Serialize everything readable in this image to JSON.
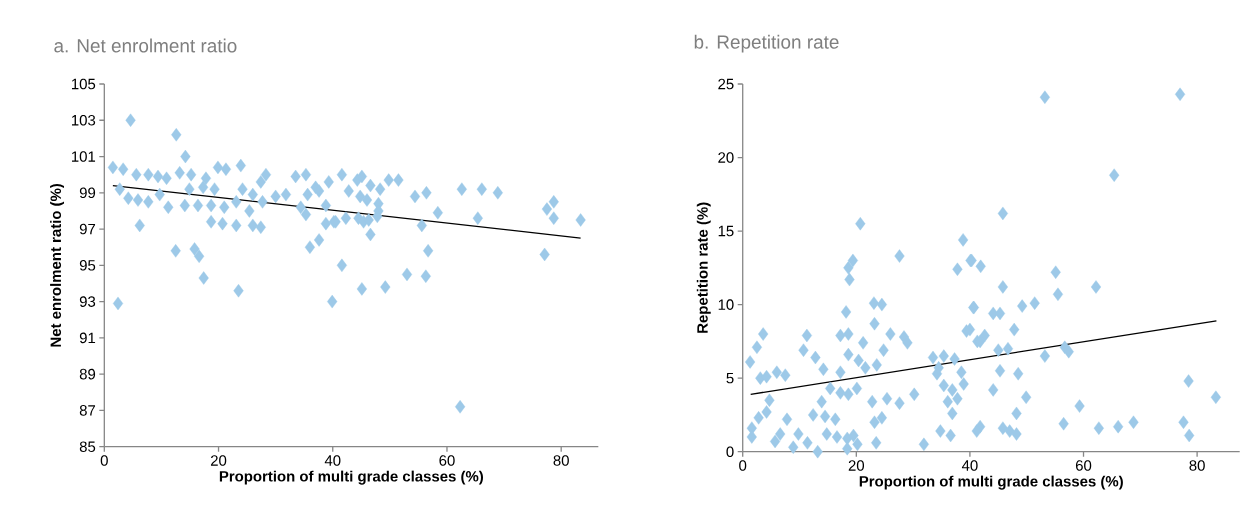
{
  "chart_data": [
    {
      "type": "scatter",
      "title": "a. Net enrolment ratio",
      "xlabel": "Proportion of multi grade classes (%)",
      "ylabel": "Net enrolment ratio (%)",
      "xlim": [
        0,
        86.5
      ],
      "ylim": [
        85,
        105
      ],
      "xticks": [
        0,
        20,
        40,
        60,
        80
      ],
      "yticks": [
        85,
        87,
        89,
        91,
        93,
        95,
        97,
        99,
        101,
        103,
        105
      ],
      "grid": false,
      "series": [
        {
          "color": "#9dc9e8",
          "marker": "diamond",
          "x": [
            4.6,
            12.6,
            14.2,
            2.4,
            6.2,
            12.5,
            15.8,
            16.6,
            17.4,
            23.5,
            39.9,
            36.0,
            37.6,
            1.5,
            3.3,
            5.6,
            7.7,
            9.4,
            10.9,
            13.2,
            15.2,
            17.8,
            19.9,
            21.3,
            23.9,
            28.3,
            27.4,
            33.5,
            35.3,
            39.3,
            2.7,
            4.2,
            5.9,
            7.7,
            9.7,
            11.2,
            14.1,
            14.9,
            16.4,
            17.3,
            18.7,
            19.3,
            18.7,
            20.7,
            21.0,
            23.1,
            23.1,
            24.2,
            25.4,
            26.0,
            27.4,
            26.0,
            27.7,
            30.0,
            31.8,
            34.4,
            35.3,
            35.6,
            37.0,
            37.6,
            38.8,
            38.8,
            40.2,
            41.6,
            44.3,
            45.1,
            46.6,
            48.3,
            49.8,
            51.5,
            42.8,
            44.8,
            46.0,
            48.0,
            48.0,
            40.5,
            42.3,
            44.5,
            45.4,
            46.3,
            47.8,
            46.6,
            54.4,
            56.4,
            58.4,
            55.6,
            56.7,
            56.3,
            53.0,
            41.6,
            45.1,
            49.2,
            62.6,
            66.1,
            68.9,
            65.4,
            62.3,
            77.1,
            78.7,
            77.5,
            78.7,
            83.4
          ],
          "values": [
            103.0,
            102.2,
            101.0,
            92.9,
            97.2,
            95.8,
            95.9,
            95.5,
            94.3,
            93.6,
            93.0,
            96.0,
            96.4,
            100.4,
            100.3,
            100.0,
            100.0,
            99.9,
            99.8,
            100.1,
            100.0,
            99.8,
            100.4,
            100.3,
            100.5,
            100.0,
            99.6,
            99.9,
            100.0,
            99.6,
            99.2,
            98.7,
            98.6,
            98.5,
            98.9,
            98.2,
            98.3,
            99.2,
            98.3,
            99.3,
            98.3,
            99.2,
            97.4,
            97.3,
            98.2,
            97.2,
            98.5,
            99.2,
            98.0,
            97.2,
            97.1,
            98.9,
            98.5,
            98.8,
            98.9,
            98.2,
            97.8,
            98.9,
            99.3,
            99.1,
            98.3,
            97.3,
            97.4,
            100.0,
            99.7,
            99.9,
            99.4,
            99.2,
            99.7,
            99.7,
            99.1,
            98.8,
            98.6,
            98.4,
            98.0,
            97.4,
            97.6,
            97.6,
            97.4,
            97.5,
            97.7,
            96.7,
            98.8,
            99.0,
            97.9,
            97.2,
            95.8,
            94.4,
            94.5,
            95.0,
            93.7,
            93.8,
            99.2,
            99.2,
            99.0,
            97.6,
            87.2,
            95.6,
            98.5,
            98.1,
            97.6,
            97.5
          ]
        },
        {
          "type": "line",
          "color": "#000000",
          "x": [
            1.5,
            83.4
          ],
          "values": [
            99.4,
            96.5
          ]
        }
      ]
    },
    {
      "type": "scatter",
      "title": "b. Repetition rate",
      "xlabel": "Proportion of multi grade classes (%)",
      "ylabel": "Repetition rate (%)",
      "xlim": [
        0,
        87.5
      ],
      "ylim": [
        0,
        25
      ],
      "xticks": [
        0,
        20,
        40,
        60,
        80
      ],
      "yticks": [
        0,
        5,
        10,
        15,
        20,
        25
      ],
      "grid": false,
      "series": [
        {
          "color": "#9dc9e8",
          "marker": "diamond",
          "x": [
            20.7,
            38.8,
            40.1,
            37.8,
            27.6,
            19.4,
            18.6,
            18.8,
            18.2,
            23.1,
            24.5,
            40.7,
            23.2,
            39.4,
            11.3,
            3.6,
            2.5,
            10.7,
            12.8,
            17.2,
            18.6,
            21.2,
            26.0,
            28.4,
            29.0,
            24.8,
            18.6,
            20.4,
            21.6,
            23.6,
            33.5,
            35.4,
            37.3,
            41.3,
            1.3,
            3.1,
            4.2,
            6.0,
            7.5,
            14.2,
            17.2,
            15.4,
            17.2,
            18.6,
            20.1,
            34.2,
            35.4,
            36.9,
            38.5,
            38.9,
            34.5,
            4.7,
            4.2,
            2.8,
            1.6,
            1.6,
            7.8,
            6.6,
            5.7,
            9.8,
            8.9,
            11.4,
            13.2,
            12.4,
            13.9,
            14.5,
            16.3,
            14.8,
            16.6,
            18.4,
            18.4,
            19.5,
            20.2,
            22.8,
            23.2,
            24.5,
            25.4,
            27.6,
            30.2,
            23.5,
            31.9,
            34.8,
            36.6,
            36.1,
            37.8,
            36.9,
            53.2,
            77.0,
            65.4,
            45.8,
            40.3,
            41.9,
            55.1,
            45.8,
            62.2,
            55.5,
            40.6,
            44.1,
            45.3,
            49.2,
            51.4,
            47.8,
            40.0,
            42.6,
            41.8,
            45.0,
            46.7,
            53.2,
            56.7,
            57.4,
            45.3,
            48.5,
            44.1,
            49.9,
            48.2,
            59.3,
            78.5,
            83.3,
            41.8,
            41.2,
            45.8,
            47.0,
            48.2,
            56.5,
            62.7,
            66.1,
            68.8,
            77.6,
            78.6
          ],
          "values": [
            15.5,
            14.4,
            13.0,
            12.4,
            13.3,
            13.0,
            12.5,
            11.7,
            9.5,
            10.1,
            10.0,
            9.8,
            8.7,
            8.2,
            7.9,
            8.0,
            7.1,
            6.9,
            6.4,
            7.9,
            8.0,
            7.4,
            8.0,
            7.8,
            7.4,
            6.9,
            6.6,
            6.2,
            5.7,
            5.9,
            6.4,
            6.5,
            6.3,
            7.5,
            6.1,
            5.0,
            5.1,
            5.4,
            5.2,
            5.6,
            5.4,
            4.3,
            4.0,
            3.9,
            4.3,
            5.3,
            4.5,
            4.2,
            5.4,
            4.6,
            5.7,
            3.5,
            2.7,
            2.3,
            1.6,
            1.0,
            2.2,
            1.2,
            0.7,
            1.2,
            0.3,
            0.6,
            0.0,
            2.5,
            3.4,
            2.4,
            2.2,
            1.2,
            1.0,
            0.9,
            0.2,
            1.1,
            0.5,
            3.4,
            2.0,
            2.3,
            3.6,
            3.3,
            3.9,
            0.6,
            0.5,
            1.4,
            1.1,
            3.4,
            3.6,
            2.6,
            24.1,
            24.3,
            18.8,
            16.2,
            13.0,
            12.6,
            12.2,
            11.2,
            11.2,
            10.7,
            9.8,
            9.4,
            9.4,
            9.9,
            10.1,
            8.3,
            8.3,
            7.9,
            7.5,
            6.9,
            7.0,
            6.5,
            7.1,
            6.8,
            5.5,
            5.3,
            4.2,
            3.7,
            2.6,
            3.1,
            4.8,
            3.7,
            1.7,
            1.4,
            1.6,
            1.4,
            1.2,
            1.9,
            1.6,
            1.7,
            2.0,
            2.0,
            1.1
          ]
        },
        {
          "type": "line",
          "color": "#000000",
          "x": [
            1.4,
            83.4
          ],
          "values": [
            3.9,
            8.9
          ]
        }
      ]
    }
  ]
}
